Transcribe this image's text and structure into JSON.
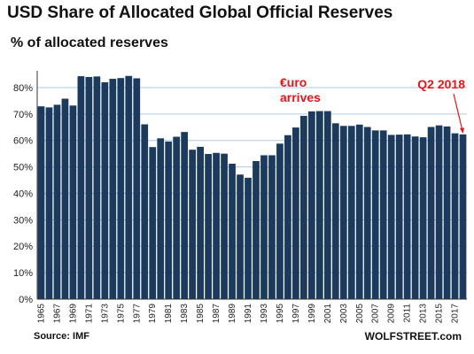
{
  "title": "USD Share of Allocated Global Official Reserves",
  "subtitle": "% of allocated reserves",
  "source": "Source: IMF",
  "brand": "WOLFSTREET.com",
  "colors": {
    "bar": "#1b3a5e",
    "annotation": "#e8141a",
    "grid": "#a9cce3",
    "axis": "#333333"
  },
  "chart_data": {
    "type": "bar",
    "title": "USD Share of Allocated Global Official Reserves",
    "ylabel": "% of allocated reserves",
    "ylim": [
      0,
      85
    ],
    "yticks": [
      "0%",
      "10%",
      "20%",
      "30%",
      "40%",
      "50%",
      "60%",
      "70%",
      "80%"
    ],
    "grid": true,
    "categories": [
      1965,
      1966,
      1967,
      1968,
      1969,
      1970,
      1971,
      1972,
      1973,
      1974,
      1975,
      1976,
      1977,
      1978,
      1979,
      1980,
      1981,
      1982,
      1983,
      1984,
      1985,
      1986,
      1987,
      1988,
      1989,
      1990,
      1991,
      1992,
      1993,
      1994,
      1995,
      1996,
      1997,
      1998,
      1999,
      2000,
      2001,
      2002,
      2003,
      2004,
      2005,
      2006,
      2007,
      2008,
      2009,
      2010,
      2011,
      2012,
      2013,
      2014,
      2015,
      2016,
      2017,
      "Q2 2018"
    ],
    "xtick_labels": [
      "1965",
      "1967",
      "1969",
      "1971",
      "1973",
      "1975",
      "1977",
      "1979",
      "1981",
      "1983",
      "1985",
      "1987",
      "1989",
      "1991",
      "1993",
      "1995",
      "1997",
      "1999",
      "2001",
      "2003",
      "2005",
      "2007",
      "2009",
      "2011",
      "2013",
      "2015",
      "2017"
    ],
    "values": [
      72.9,
      72.5,
      73.5,
      75.8,
      73.2,
      84.3,
      84.0,
      84.2,
      82.0,
      83.3,
      83.6,
      84.4,
      83.5,
      66.1,
      57.5,
      60.8,
      59.6,
      61.4,
      63.2,
      56.5,
      57.6,
      54.9,
      55.3,
      55.0,
      51.2,
      47.1,
      45.9,
      52.2,
      54.4,
      54.4,
      58.8,
      62.0,
      64.9,
      69.3,
      71.0,
      71.1,
      71.1,
      66.5,
      65.5,
      65.5,
      66.0,
      65.1,
      63.8,
      63.8,
      62.1,
      62.2,
      62.3,
      61.5,
      61.2,
      65.1,
      65.7,
      65.3,
      62.7,
      62.3
    ],
    "annotations": [
      {
        "text": "€uro\narrives",
        "at": 1999
      },
      {
        "text": "Q2 2018",
        "at": "Q2 2018"
      }
    ]
  }
}
